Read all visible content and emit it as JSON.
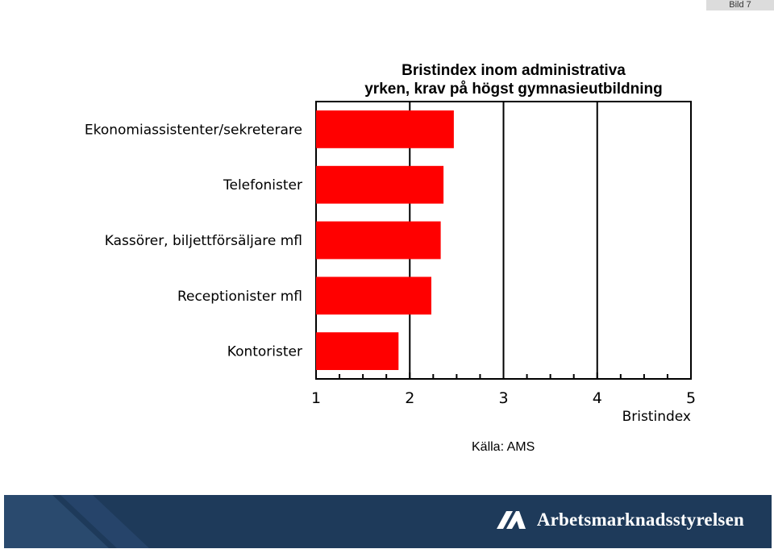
{
  "slide_label": "Bild 7",
  "chart_data": {
    "type": "bar",
    "orientation": "horizontal",
    "title_lines": [
      "Bristindex inom administrativa",
      "yrken, krav på högst gymnasieutbildning"
    ],
    "categories": [
      "Ekonomiassistenter/sekreterare",
      "Telefonister",
      "Kassörer, biljettförsäljare mfl",
      "Receptionister mfl",
      "Kontorister"
    ],
    "values": [
      2.47,
      2.36,
      2.33,
      2.23,
      1.88
    ],
    "xlim": [
      1,
      5
    ],
    "xticks": [
      "1",
      "2",
      "3",
      "4",
      "5"
    ],
    "xlabel": "Bristindex",
    "bar_color": "#ff0000",
    "grid": "vertical"
  },
  "source": "Källa: AMS",
  "footer": {
    "brand": "Arbetsmarknadsstyrelsen",
    "background": "#1e3a5a"
  }
}
